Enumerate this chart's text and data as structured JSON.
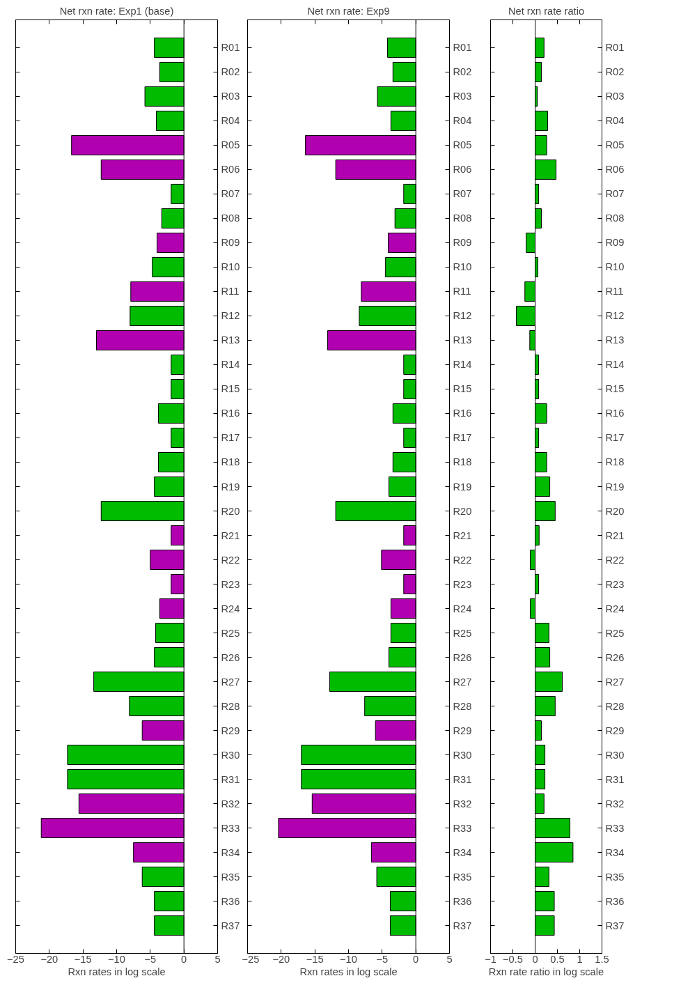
{
  "chart_data": [
    {
      "type": "bar",
      "orientation": "horizontal",
      "title": "Net rxn rate: Exp1 (base)",
      "xlabel": "Rxn rates in log scale",
      "categories": [
        "R01",
        "R02",
        "R03",
        "R04",
        "R05",
        "R06",
        "R07",
        "R08",
        "R09",
        "R10",
        "R11",
        "R12",
        "R13",
        "R14",
        "R15",
        "R16",
        "R17",
        "R18",
        "R19",
        "R20",
        "R21",
        "R22",
        "R23",
        "R24",
        "R25",
        "R26",
        "R27",
        "R28",
        "R29",
        "R30",
        "R31",
        "R32",
        "R33",
        "R34",
        "R35",
        "R36",
        "R37"
      ],
      "values": [
        -4.4,
        -3.6,
        -5.8,
        -4.1,
        -16.7,
        -12.3,
        -1.9,
        -3.3,
        -4.0,
        -4.7,
        -7.9,
        -8.0,
        -13.0,
        -1.9,
        -1.9,
        -3.8,
        -1.9,
        -3.8,
        -4.4,
        -12.3,
        -1.9,
        -5.0,
        -1.9,
        -3.6,
        -4.2,
        -4.4,
        -13.4,
        -8.1,
        -6.2,
        -17.3,
        -17.3,
        -15.6,
        -21.2,
        -7.5,
        -6.2,
        -4.4,
        -4.4
      ],
      "colors": [
        "#00bb00",
        "#00bb00",
        "#00bb00",
        "#00bb00",
        "#b000b0",
        "#b000b0",
        "#00bb00",
        "#00bb00",
        "#b000b0",
        "#00bb00",
        "#b000b0",
        "#00bb00",
        "#b000b0",
        "#00bb00",
        "#00bb00",
        "#00bb00",
        "#00bb00",
        "#00bb00",
        "#00bb00",
        "#00bb00",
        "#b000b0",
        "#b000b0",
        "#b000b0",
        "#b000b0",
        "#00bb00",
        "#00bb00",
        "#00bb00",
        "#00bb00",
        "#b000b0",
        "#00bb00",
        "#00bb00",
        "#b000b0",
        "#b000b0",
        "#b000b0",
        "#00bb00",
        "#00bb00",
        "#00bb00"
      ],
      "xlim": [
        -25,
        5
      ],
      "xticks": [
        -25,
        -20,
        -15,
        -10,
        -5,
        0,
        5
      ]
    },
    {
      "type": "bar",
      "orientation": "horizontal",
      "title": "Net rxn rate: Exp9",
      "xlabel": "Rxn rates in log scale",
      "categories": [
        "R01",
        "R02",
        "R03",
        "R04",
        "R05",
        "R06",
        "R07",
        "R08",
        "R09",
        "R10",
        "R11",
        "R12",
        "R13",
        "R14",
        "R15",
        "R16",
        "R17",
        "R18",
        "R19",
        "R20",
        "R21",
        "R22",
        "R23",
        "R24",
        "R25",
        "R26",
        "R27",
        "R28",
        "R29",
        "R30",
        "R31",
        "R32",
        "R33",
        "R34",
        "R35",
        "R36",
        "R37"
      ],
      "values": [
        -4.2,
        -3.4,
        -5.7,
        -3.7,
        -16.4,
        -11.9,
        -1.8,
        -3.1,
        -4.1,
        -4.5,
        -8.1,
        -8.4,
        -13.1,
        -1.8,
        -1.8,
        -3.4,
        -1.8,
        -3.4,
        -4.0,
        -11.9,
        -1.8,
        -5.1,
        -1.8,
        -3.7,
        -3.7,
        -4.0,
        -12.8,
        -7.6,
        -6.0,
        -17.0,
        -17.0,
        -15.4,
        -20.4,
        -6.6,
        -5.8,
        -3.8,
        -3.8
      ],
      "colors": [
        "#00bb00",
        "#00bb00",
        "#00bb00",
        "#00bb00",
        "#b000b0",
        "#b000b0",
        "#00bb00",
        "#00bb00",
        "#b000b0",
        "#00bb00",
        "#b000b0",
        "#00bb00",
        "#b000b0",
        "#00bb00",
        "#00bb00",
        "#00bb00",
        "#00bb00",
        "#00bb00",
        "#00bb00",
        "#00bb00",
        "#b000b0",
        "#b000b0",
        "#b000b0",
        "#b000b0",
        "#00bb00",
        "#00bb00",
        "#00bb00",
        "#00bb00",
        "#b000b0",
        "#00bb00",
        "#00bb00",
        "#b000b0",
        "#b000b0",
        "#b000b0",
        "#00bb00",
        "#00bb00",
        "#00bb00"
      ],
      "xlim": [
        -25,
        5
      ],
      "xticks": [
        -25,
        -20,
        -15,
        -10,
        -5,
        0,
        5
      ]
    },
    {
      "type": "bar",
      "orientation": "horizontal",
      "title": "Net rxn rate ratio",
      "xlabel": "Rxn rate ratio in log scale",
      "categories": [
        "R01",
        "R02",
        "R03",
        "R04",
        "R05",
        "R06",
        "R07",
        "R08",
        "R09",
        "R10",
        "R11",
        "R12",
        "R13",
        "R14",
        "R15",
        "R16",
        "R17",
        "R18",
        "R19",
        "R20",
        "R21",
        "R22",
        "R23",
        "R24",
        "R25",
        "R26",
        "R27",
        "R28",
        "R29",
        "R30",
        "R31",
        "R32",
        "R33",
        "R34",
        "R35",
        "R36",
        "R37"
      ],
      "values": [
        0.2,
        0.14,
        0.05,
        0.28,
        0.26,
        0.47,
        0.08,
        0.14,
        -0.2,
        0.06,
        -0.23,
        -0.42,
        -0.12,
        0.08,
        0.08,
        0.26,
        0.08,
        0.26,
        0.33,
        0.45,
        0.09,
        -0.11,
        0.08,
        -0.11,
        0.31,
        0.33,
        0.61,
        0.45,
        0.14,
        0.22,
        0.22,
        0.2,
        0.78,
        0.85,
        0.31,
        0.43,
        0.43
      ],
      "color": "#00bb00",
      "xlim": [
        -1,
        1.5
      ],
      "xticks": [
        -1,
        -0.5,
        0,
        0.5,
        1,
        1.5
      ]
    }
  ]
}
